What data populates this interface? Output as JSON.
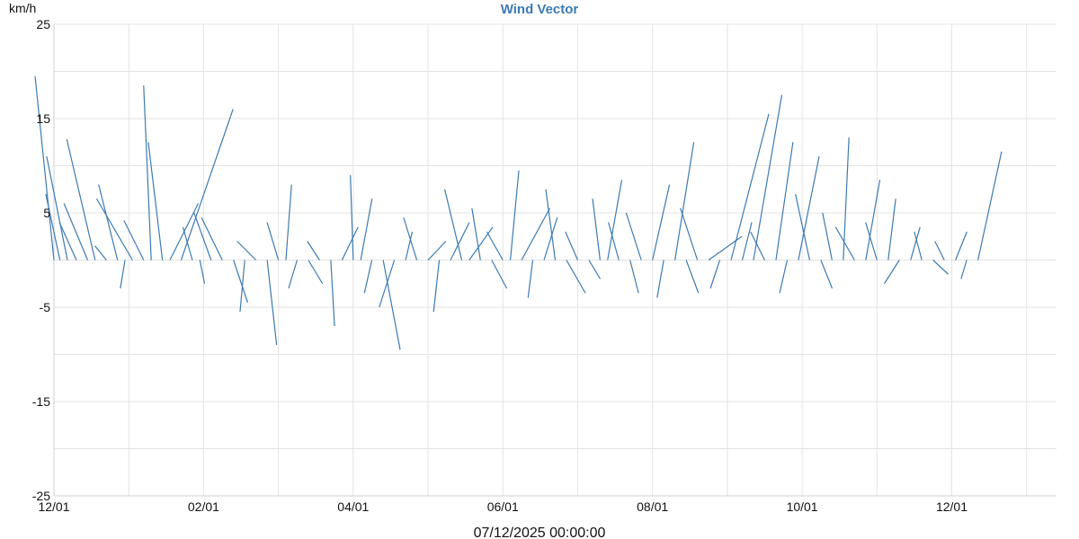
{
  "chart_data": {
    "type": "vector",
    "title": "Wind Vector",
    "ylabel": "km/h",
    "ylim": [
      -25,
      25
    ],
    "y_ticks": [
      "25",
      "15",
      "5",
      "-5",
      "-15",
      "-25"
    ],
    "y_tick_values": [
      25,
      15,
      5,
      -5,
      -15,
      -25
    ],
    "x_ticks": [
      "12/01",
      "02/01",
      "04/01",
      "06/01",
      "08/01",
      "10/01",
      "12/01"
    ],
    "x_tick_index": [
      0,
      2,
      4,
      6,
      8,
      10,
      12
    ],
    "x_range_months": [
      0,
      13.4
    ],
    "grid": true,
    "footer": "07/12/2025 00:00:00",
    "colors": {
      "vector": "#3d7ab2",
      "title": "#3d7ab2",
      "grid": "#e3e3e3"
    },
    "vectors": [
      [
        0.0,
        -2.0,
        19.5
      ],
      [
        0.08,
        -1.5,
        7.0
      ],
      [
        0.18,
        -2.2,
        11.0
      ],
      [
        0.3,
        -1.8,
        4.0
      ],
      [
        0.45,
        -2.5,
        6.0
      ],
      [
        0.55,
        -3.0,
        12.8
      ],
      [
        0.7,
        -1.2,
        1.5
      ],
      [
        0.85,
        -2.0,
        8.0
      ],
      [
        0.95,
        -0.5,
        -3.0
      ],
      [
        1.05,
        -3.8,
        6.5
      ],
      [
        1.2,
        -2.1,
        4.2
      ],
      [
        1.3,
        -0.8,
        18.5
      ],
      [
        1.45,
        -1.5,
        12.5
      ],
      [
        1.55,
        3.0,
        6.0
      ],
      [
        1.7,
        5.5,
        16.0
      ],
      [
        1.85,
        -1.0,
        3.5
      ],
      [
        1.95,
        0.5,
        -2.5
      ],
      [
        2.1,
        -1.8,
        5.0
      ],
      [
        2.25,
        -2.2,
        4.5
      ],
      [
        2.4,
        1.5,
        -4.5
      ],
      [
        2.55,
        -0.5,
        -5.5
      ],
      [
        2.7,
        -2.0,
        2.0
      ],
      [
        2.85,
        1.0,
        -9.0
      ],
      [
        3.0,
        -1.2,
        4.0
      ],
      [
        3.1,
        0.6,
        8.0
      ],
      [
        3.25,
        -0.9,
        -3.0
      ],
      [
        3.4,
        1.5,
        -2.5
      ],
      [
        3.55,
        -1.3,
        2.0
      ],
      [
        3.7,
        0.4,
        -7.0
      ],
      [
        3.85,
        1.7,
        3.5
      ],
      [
        4.0,
        -0.3,
        9.0
      ],
      [
        4.1,
        1.2,
        6.5
      ],
      [
        4.25,
        -0.8,
        -3.5
      ],
      [
        4.4,
        1.8,
        -9.5
      ],
      [
        4.55,
        -1.6,
        -5.0
      ],
      [
        4.7,
        0.7,
        3.0
      ],
      [
        4.85,
        -1.4,
        4.5
      ],
      [
        5.0,
        1.9,
        2.0
      ],
      [
        5.15,
        -0.6,
        -5.5
      ],
      [
        5.3,
        2.0,
        4.0
      ],
      [
        5.45,
        -1.8,
        7.5
      ],
      [
        5.55,
        2.5,
        3.5
      ],
      [
        5.7,
        -0.9,
        5.5
      ],
      [
        5.85,
        1.6,
        -3.0
      ],
      [
        6.0,
        -1.7,
        3.0
      ],
      [
        6.1,
        0.9,
        9.5
      ],
      [
        6.25,
        3.0,
        5.5
      ],
      [
        6.4,
        -0.5,
        -4.0
      ],
      [
        6.55,
        1.4,
        4.5
      ],
      [
        6.7,
        -1.0,
        7.5
      ],
      [
        6.85,
        2.0,
        -3.5
      ],
      [
        7.0,
        -1.3,
        3.0
      ],
      [
        7.15,
        1.2,
        -2.0
      ],
      [
        7.3,
        -0.8,
        6.5
      ],
      [
        7.4,
        1.5,
        8.5
      ],
      [
        7.55,
        -1.1,
        4.0
      ],
      [
        7.7,
        0.9,
        -3.5
      ],
      [
        7.85,
        -1.6,
        5.0
      ],
      [
        8.0,
        1.8,
        8.0
      ],
      [
        8.15,
        -0.7,
        -4.0
      ],
      [
        8.3,
        2.0,
        12.5
      ],
      [
        8.45,
        1.3,
        -3.5
      ],
      [
        8.6,
        -1.8,
        5.5
      ],
      [
        8.75,
        3.5,
        2.5
      ],
      [
        8.9,
        -1.0,
        -3.0
      ],
      [
        9.05,
        4.0,
        15.5
      ],
      [
        9.2,
        1.0,
        4.0
      ],
      [
        9.35,
        3.0,
        17.5
      ],
      [
        9.5,
        -1.5,
        3.0
      ],
      [
        9.65,
        1.8,
        12.5
      ],
      [
        9.8,
        -0.8,
        -3.5
      ],
      [
        9.95,
        2.2,
        11.0
      ],
      [
        10.1,
        -1.5,
        7.0
      ],
      [
        10.25,
        1.2,
        -3.0
      ],
      [
        10.4,
        -1.0,
        5.0
      ],
      [
        10.55,
        0.6,
        13.0
      ],
      [
        10.7,
        -2.0,
        3.5
      ],
      [
        10.85,
        1.5,
        8.5
      ],
      [
        11.0,
        -1.2,
        4.0
      ],
      [
        11.15,
        0.8,
        6.5
      ],
      [
        11.3,
        -1.6,
        -2.5
      ],
      [
        11.45,
        1.0,
        3.5
      ],
      [
        11.6,
        -0.8,
        3.0
      ],
      [
        11.75,
        1.6,
        -1.5
      ],
      [
        11.9,
        -1.0,
        2.0
      ],
      [
        12.05,
        1.2,
        3.0
      ],
      [
        12.2,
        -0.6,
        -2.0
      ],
      [
        12.35,
        2.5,
        11.5
      ]
    ]
  }
}
